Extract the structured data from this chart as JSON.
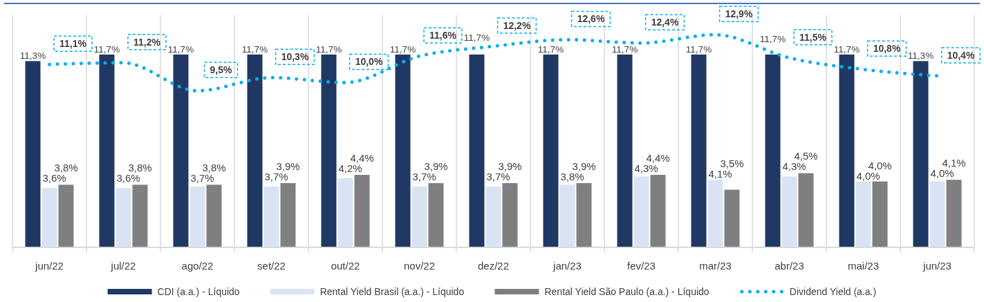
{
  "chart_data": {
    "type": "bar",
    "categories": [
      "jun/22",
      "jul/22",
      "ago/22",
      "set/22",
      "out/22",
      "nov/22",
      "dez/22",
      "jan/23",
      "fev/23",
      "mar/23",
      "abr/23",
      "mai/23",
      "jun/23"
    ],
    "series": [
      {
        "name": "CDI (a.a.) - Líquido",
        "color": "#203864",
        "values": [
          11.3,
          11.7,
          11.7,
          11.7,
          11.7,
          11.7,
          11.7,
          11.7,
          11.7,
          11.7,
          11.7,
          11.7,
          11.3
        ],
        "value_labels": [
          "11,3%",
          "11,7%",
          "11,7%",
          "11,7%",
          "11,7%",
          "11,7%",
          "11,7%",
          "11,7%",
          "11,7%",
          "11,7%",
          "11,7%",
          "11,7%",
          "11,3%"
        ]
      },
      {
        "name": "Rental Yield Brasil (a.a.) - Líquido",
        "color": "#dae3f3",
        "values": [
          3.6,
          3.6,
          3.7,
          3.7,
          4.2,
          3.7,
          3.7,
          3.8,
          4.3,
          4.1,
          4.3,
          4.0,
          4.0
        ],
        "value_labels": [
          "3,6%",
          "3,6%",
          "3,7%",
          "3,7%",
          "4,2%",
          "3,7%",
          "3,7%",
          "3,8%",
          "4,3%",
          "4,1%",
          "4,3%",
          "4,0%",
          "4,0%"
        ]
      },
      {
        "name": "Rental Yield São Paulo (a.a.) - Líquido",
        "color": "#7f7f7f",
        "values": [
          3.8,
          3.8,
          3.8,
          3.9,
          4.4,
          3.9,
          3.9,
          3.9,
          4.4,
          3.5,
          4.5,
          4.0,
          4.1
        ],
        "value_labels": [
          "3,8%",
          "3,8%",
          "3,8%",
          "3,9%",
          "4,4%",
          "3,9%",
          "3,9%",
          "3,9%",
          "4,4%",
          "3,5%",
          "4,5%",
          "4,0%",
          "4,1%"
        ]
      },
      {
        "name": "Dividend Yield (a.a.)",
        "type": "line",
        "line_style": "dotted",
        "color": "#00b0f0",
        "values": [
          11.1,
          11.2,
          9.5,
          10.3,
          10.0,
          11.6,
          12.2,
          12.6,
          12.4,
          12.9,
          11.5,
          10.8,
          10.4
        ],
        "value_labels": [
          "11,1%",
          "11,2%",
          "9,5%",
          "10,3%",
          "10,0%",
          "11,6%",
          "12,2%",
          "12,6%",
          "12,4%",
          "12,9%",
          "11,5%",
          "10,8%",
          "10,4%"
        ]
      }
    ],
    "ylim": [
      0,
      14
    ],
    "tick_labels": "x",
    "grid": "x",
    "legend": "bottom"
  }
}
